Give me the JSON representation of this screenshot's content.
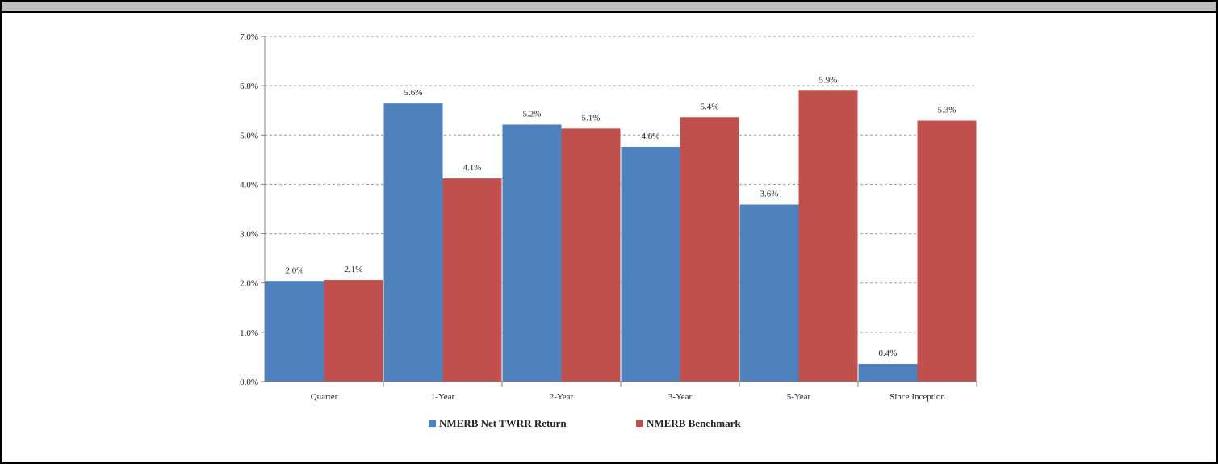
{
  "chart_data": {
    "type": "bar",
    "categories": [
      "Quarter",
      "1-Year",
      "2-Year",
      "3-Year",
      "5-Year",
      "Since Inception"
    ],
    "series": [
      {
        "name": "NMERB Net TWRR Return",
        "color": "#4f81bd",
        "values": [
          2.04,
          5.64,
          5.21,
          4.76,
          3.59,
          0.36
        ],
        "labels": [
          "2.0%",
          "5.6%",
          "5.2%",
          "4.8%",
          "3.6%",
          "0.4%"
        ]
      },
      {
        "name": "NMERB Benchmark",
        "color": "#c0504d",
        "values": [
          2.06,
          4.12,
          5.13,
          5.36,
          5.9,
          5.29
        ],
        "labels": [
          "2.1%",
          "4.1%",
          "5.1%",
          "5.4%",
          "5.9%",
          "5.3%"
        ]
      }
    ],
    "y_ticks": [
      "0.0%",
      "1.0%",
      "2.0%",
      "3.0%",
      "4.0%",
      "5.0%",
      "6.0%",
      "7.0%"
    ],
    "ylim": [
      0,
      7
    ],
    "grid": "dashed horizontal",
    "legend_position": "bottom"
  }
}
